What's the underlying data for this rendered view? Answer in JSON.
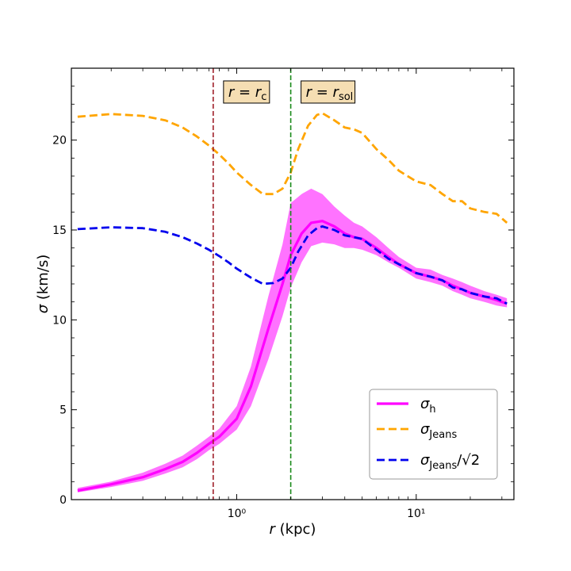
{
  "chart_data": {
    "type": "line",
    "xlabel": "r (kpc)",
    "ylabel": "σ (km/s)",
    "xscale": "log",
    "xlim": [
      0.12,
      35
    ],
    "ylim": [
      0,
      24
    ],
    "yticks": [
      0,
      5,
      10,
      15,
      20
    ],
    "xticks": [
      1,
      10
    ],
    "xtick_labels": [
      "10⁰",
      "10¹"
    ],
    "grid": false,
    "legend_position": "lower-right",
    "vlines": [
      {
        "name": "r_c",
        "x": 0.74,
        "color": "#a0202a",
        "label": "r = r",
        "subscript": "c"
      },
      {
        "name": "r_sol",
        "x": 2.0,
        "color": "#1a8a1a",
        "label": "r = r",
        "subscript": "sol"
      }
    ],
    "series": [
      {
        "name": "σ_h",
        "legend_main": "σ",
        "legend_sub": "h",
        "legend_suffix": "",
        "color": "#ff00ff",
        "style": "solid",
        "x": [
          0.13,
          0.2,
          0.3,
          0.4,
          0.5,
          0.6,
          0.7,
          0.8,
          1.0,
          1.2,
          1.5,
          1.8,
          2.0,
          2.3,
          2.6,
          3.0,
          3.5,
          4.0,
          4.5,
          5.0,
          6.0,
          7.0,
          8.0,
          10.0,
          12.0,
          14.0,
          16.0,
          18.0,
          20.0,
          24.0,
          28.0,
          32.0
        ],
        "values": [
          0.5,
          0.85,
          1.25,
          1.7,
          2.1,
          2.6,
          3.1,
          3.5,
          4.5,
          6.3,
          9.5,
          12.0,
          13.6,
          14.8,
          15.4,
          15.5,
          15.2,
          14.8,
          14.6,
          14.5,
          14.0,
          13.5,
          13.1,
          12.6,
          12.4,
          12.2,
          11.9,
          11.7,
          11.5,
          11.3,
          11.1,
          10.9
        ],
        "band_low": [
          0.4,
          0.7,
          1.05,
          1.45,
          1.8,
          2.25,
          2.75,
          3.1,
          3.9,
          5.2,
          7.8,
          10.2,
          11.8,
          13.2,
          14.1,
          14.3,
          14.2,
          14.0,
          14.0,
          13.9,
          13.6,
          13.2,
          12.9,
          12.3,
          12.1,
          11.9,
          11.6,
          11.4,
          11.2,
          11.0,
          10.8,
          10.7
        ],
        "band_high": [
          0.65,
          1.0,
          1.5,
          2.0,
          2.45,
          3.0,
          3.5,
          3.95,
          5.2,
          7.4,
          11.3,
          14.2,
          16.5,
          17.0,
          17.3,
          17.0,
          16.3,
          15.8,
          15.4,
          15.2,
          14.6,
          14.0,
          13.5,
          12.9,
          12.8,
          12.5,
          12.3,
          12.1,
          11.9,
          11.6,
          11.4,
          11.2
        ]
      },
      {
        "name": "σ_Jeans",
        "legend_main": "σ",
        "legend_sub": "Jeans",
        "legend_suffix": "",
        "color": "#ffa500",
        "style": "dashed",
        "x": [
          0.13,
          0.2,
          0.3,
          0.4,
          0.5,
          0.6,
          0.7,
          0.8,
          0.9,
          1.0,
          1.2,
          1.4,
          1.6,
          1.8,
          2.0,
          2.2,
          2.5,
          2.8,
          3.0,
          3.5,
          4.0,
          4.5,
          5.0,
          6.0,
          7.0,
          8.0,
          10.0,
          12.0,
          14.0,
          16.0,
          18.0,
          20.0,
          24.0,
          28.0,
          32.0
        ],
        "values": [
          21.3,
          21.45,
          21.35,
          21.1,
          20.7,
          20.2,
          19.7,
          19.2,
          18.7,
          18.2,
          17.5,
          17.0,
          17.0,
          17.3,
          18.2,
          19.5,
          20.8,
          21.4,
          21.5,
          21.1,
          20.7,
          20.6,
          20.4,
          19.5,
          18.9,
          18.3,
          17.7,
          17.5,
          17.0,
          16.6,
          16.6,
          16.2,
          16.0,
          15.9,
          15.4
        ]
      },
      {
        "name": "σ_Jeans/√2",
        "legend_main": "σ",
        "legend_sub": "Jeans",
        "legend_suffix": "/√2",
        "color": "#0000ee",
        "style": "dashed",
        "x": [
          0.13,
          0.2,
          0.3,
          0.4,
          0.5,
          0.6,
          0.7,
          0.8,
          0.9,
          1.0,
          1.2,
          1.4,
          1.6,
          1.8,
          2.0,
          2.2,
          2.5,
          2.8,
          3.0,
          3.5,
          4.0,
          4.5,
          5.0,
          6.0,
          7.0,
          8.0,
          10.0,
          12.0,
          14.0,
          16.0,
          18.0,
          20.0,
          24.0,
          28.0,
          32.0
        ],
        "values": [
          15.05,
          15.15,
          15.1,
          14.9,
          14.6,
          14.25,
          13.9,
          13.55,
          13.2,
          12.85,
          12.35,
          12.0,
          12.05,
          12.3,
          12.9,
          13.8,
          14.7,
          15.1,
          15.2,
          15.0,
          14.7,
          14.6,
          14.5,
          13.9,
          13.4,
          13.1,
          12.6,
          12.4,
          12.2,
          11.8,
          11.7,
          11.5,
          11.3,
          11.2,
          10.9
        ]
      }
    ]
  }
}
